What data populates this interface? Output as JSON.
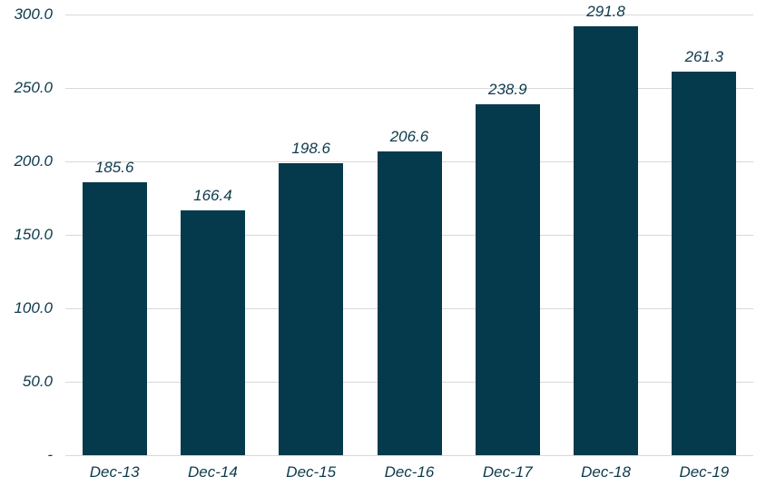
{
  "chart_data": {
    "type": "bar",
    "title": "",
    "xlabel": "",
    "ylabel": "",
    "categories": [
      "Dec-13",
      "Dec-14",
      "Dec-15",
      "Dec-16",
      "Dec-17",
      "Dec-18",
      "Dec-19"
    ],
    "values": [
      185.6,
      166.4,
      198.6,
      206.6,
      238.9,
      291.8,
      261.3
    ],
    "data_labels": [
      "185.6",
      "166.4",
      "198.6",
      "206.6",
      "238.9",
      "291.8",
      "261.3"
    ],
    "ylim": [
      0,
      300
    ],
    "ytick_interval": 50,
    "ytick_labels_bottom_up": [
      "-",
      "50.0",
      "100.0",
      "150.0",
      "200.0",
      "250.0",
      "300.0"
    ],
    "grid": true,
    "legend": "none",
    "colors": {
      "bar_fill": "#043A4C",
      "text": "#0C3A4C",
      "gridline": "#D9D9D9",
      "background": "#FFFFFF"
    }
  }
}
